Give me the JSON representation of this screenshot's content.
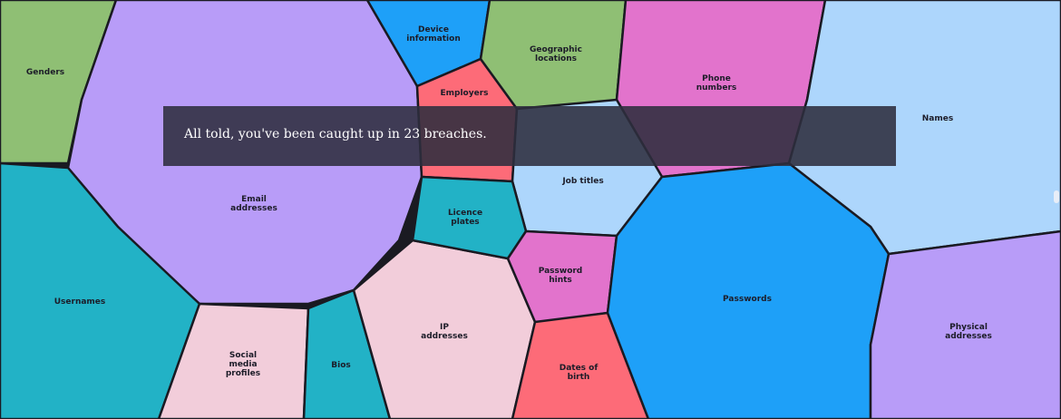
{
  "message": "All told, you've been caught up in 23 breaches.",
  "regions": [
    {
      "id": "genders",
      "label": "Genders",
      "color": "#8fbf74"
    },
    {
      "id": "email",
      "label": "Email\naddresses",
      "color": "#b89cf8"
    },
    {
      "id": "usernames",
      "label": "Usernames",
      "color": "#22b2c6"
    },
    {
      "id": "social",
      "label": "Social\nmedia\nprofiles",
      "color": "#f2cdda"
    },
    {
      "id": "bios",
      "label": "Bios",
      "color": "#22b2c6"
    },
    {
      "id": "ip",
      "label": "IP\naddresses",
      "color": "#f2cdda"
    },
    {
      "id": "device",
      "label": "Device\ninformation",
      "color": "#1ea0f8"
    },
    {
      "id": "employers",
      "label": "Employers",
      "color": "#fd6b78"
    },
    {
      "id": "geo",
      "label": "Geographic\nlocations",
      "color": "#8fbf74"
    },
    {
      "id": "phone",
      "label": "Phone\nnumbers",
      "color": "#e273cc"
    },
    {
      "id": "names",
      "label": "Names",
      "color": "#add6fc"
    },
    {
      "id": "jobs",
      "label": "Job titles",
      "color": "#add6fc"
    },
    {
      "id": "licence",
      "label": "Licence\nplates",
      "color": "#22b2c6"
    },
    {
      "id": "hints",
      "label": "Password\nhints",
      "color": "#e273cc"
    },
    {
      "id": "dob",
      "label": "Dates of\nbirth",
      "color": "#fd6b78"
    },
    {
      "id": "passwords",
      "label": "Passwords",
      "color": "#1ea0f8"
    },
    {
      "id": "physical",
      "label": "Physical\naddresses",
      "color": "#b89cf8"
    }
  ]
}
